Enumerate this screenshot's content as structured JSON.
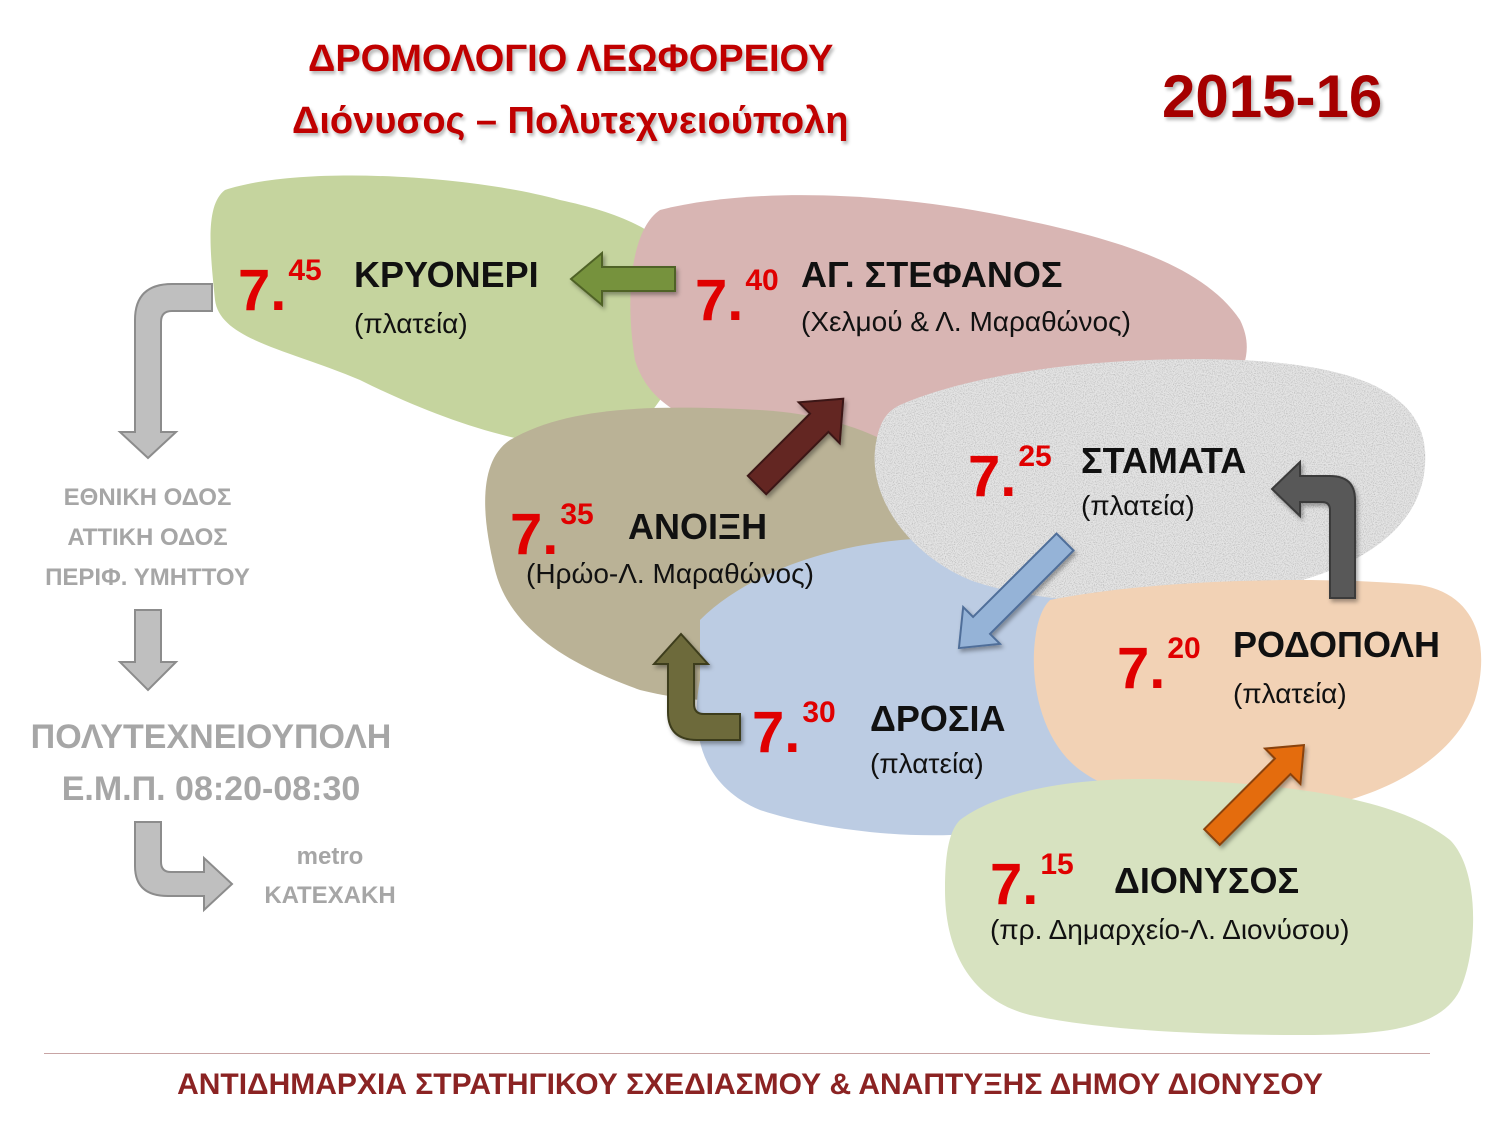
{
  "title": {
    "line1": "ΔΡΟΜΟΛΟΓΙΟ ΛΕΩΦΟΡΕΙΟΥ",
    "line2": "Διόνυσος – Πολυτεχνειούπολη",
    "season": "2015-16"
  },
  "stops": {
    "krioneri": {
      "hour": "7.",
      "minutes": "45",
      "name": "ΚΡΥΟΝΕΡΙ",
      "place": "(πλατεία)"
    },
    "agstefanos": {
      "hour": "7.",
      "minutes": "40",
      "name": "ΑΓ. ΣΤΕΦΑΝΟΣ",
      "place": "(Χελμού & Λ. Μαραθώνος)"
    },
    "anoixi": {
      "hour": "7.",
      "minutes": "35",
      "name": "ΑΝΟΙΞΗ",
      "place": "(Ηρώο-Λ. Μαραθώνος)"
    },
    "stamata": {
      "hour": "7.",
      "minutes": "25",
      "name": "ΣΤΑΜΑΤΑ",
      "place": "(πλατεία)"
    },
    "drosia": {
      "hour": "7.",
      "minutes": "30",
      "name": "ΔΡΟΣΙΑ",
      "place": "(πλατεία)"
    },
    "rodopoli": {
      "hour": "7.",
      "minutes": "20",
      "name": "ΡΟΔΟΠΟΛΗ",
      "place": "(πλατεία)"
    },
    "dionysos": {
      "hour": "7.",
      "minutes": "15",
      "name": "ΔΙΟΝΥΣΟΣ",
      "place": "(πρ. Δημαρχείο-Λ. Διονύσου)"
    }
  },
  "side": {
    "route": [
      "ΕΘΝΙΚΗ ΟΔΟΣ",
      "ΑΤΤΙΚΗ ΟΔΟΣ",
      "ΠΕΡΙΦ. ΥΜΗΤΤΟΥ"
    ],
    "destination": "ΠΟΛΥΤΕΧΝΕΙΟΥΠΟΛΗ",
    "destination_time": "Ε.Μ.Π. 08:20-08:30",
    "metro_label": "metro",
    "metro_station": "ΚΑΤΕΧΑΚΗ"
  },
  "footer": "ΑΝΤΙΔΗΜΑΡΧΙΑ ΣΤΡΑΤΗΓΙΚΟΥ ΣΧΕΔΙΑΣΜΟΥ & ΑΝΑΠΤΥΞΗΣ ΔΗΜΟΥ ΔΙΟΝΥΣΟΥ",
  "colors": {
    "title": "#c00000",
    "time": "#e00000",
    "krioneri_area": "#c5d49e",
    "agstefanos_area": "#d8b5b3",
    "anoixi_area": "#bab296",
    "stamata_area": "#e4e4e4",
    "drosia_area": "#bccce3",
    "rodopoli_area": "#f2d2b5",
    "dionysos_area": "#d7e2c0",
    "side_text": "#a6a6a6",
    "footer": "#8b2323"
  }
}
